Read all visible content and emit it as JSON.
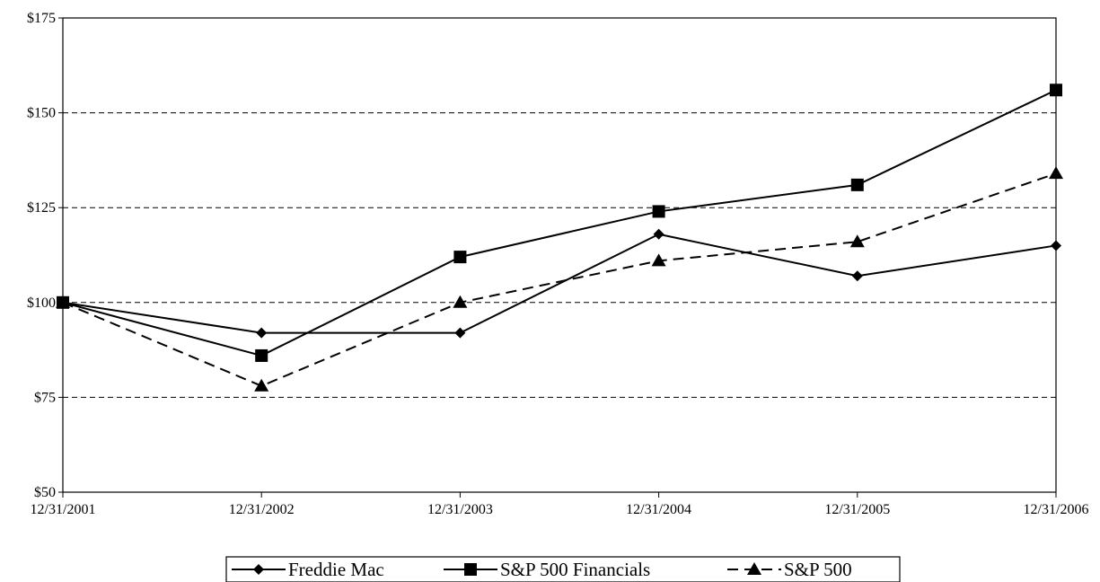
{
  "chart_data": {
    "type": "line",
    "title": "",
    "xlabel": "",
    "ylabel": "",
    "categories": [
      "12/31/2001",
      "12/31/2002",
      "12/31/2003",
      "12/31/2004",
      "12/31/2005",
      "12/31/2006"
    ],
    "ylim": [
      50,
      175
    ],
    "y_ticks": [
      50,
      75,
      100,
      125,
      150,
      175
    ],
    "y_tick_labels": [
      "$50",
      "$75",
      "$100",
      "$125",
      "$150",
      "$175"
    ],
    "grid": "horizontal dashed",
    "legend_placement": "bottom-center",
    "series": [
      {
        "name": "Freddie Mac",
        "marker": "diamond",
        "line": "solid",
        "values": [
          100,
          92,
          92,
          118,
          107,
          115
        ]
      },
      {
        "name": "S&P 500 Financials",
        "marker": "square",
        "line": "solid",
        "values": [
          100,
          86,
          112,
          124,
          131,
          156
        ]
      },
      {
        "name": "S&P 500",
        "marker": "triangle",
        "line": "dashed",
        "values": [
          100,
          78,
          100,
          111,
          116,
          134
        ]
      }
    ]
  }
}
